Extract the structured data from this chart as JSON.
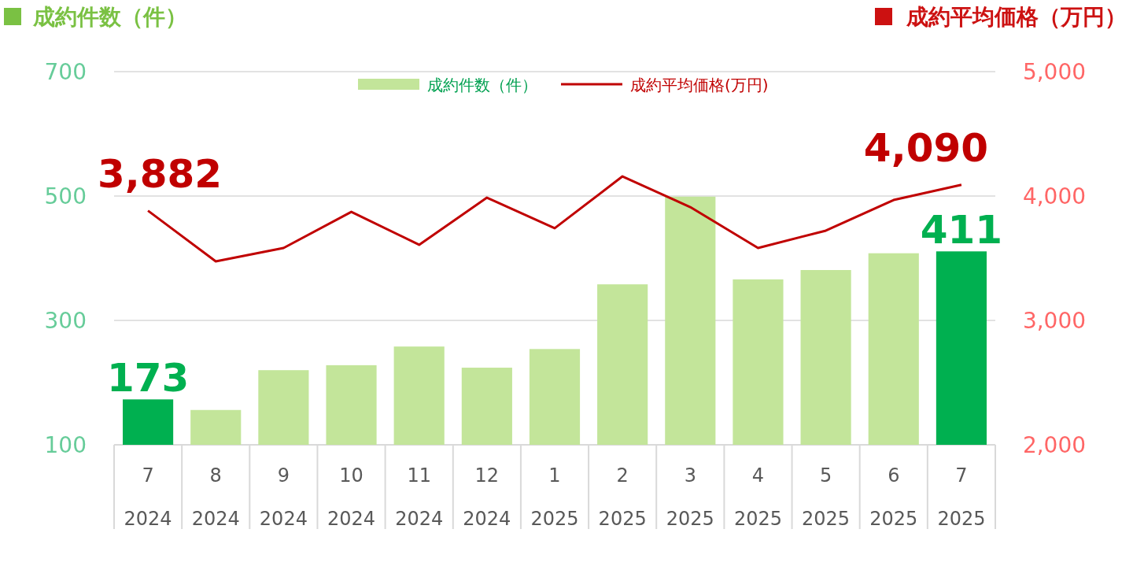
{
  "chart_data": {
    "type": "bar",
    "ylabel": "成約件数（件）",
    "y2label": "成約平均価格（万円）",
    "categories": [
      "7\n2024",
      "8\n2024",
      "9\n2024",
      "10\n2024",
      "11\n2024",
      "12\n2024",
      "1\n2025",
      "2\n2025",
      "3\n2025",
      "4\n2025",
      "5\n2025",
      "6\n2025",
      "7\n2025"
    ],
    "series": [
      {
        "name": "成約件数（件）",
        "color": "#c3e59a",
        "colors": [
          "#00b050",
          "#c3e59a",
          "#c3e59a",
          "#c3e59a",
          "#c3e59a",
          "#c3e59a",
          "#c3e59a",
          "#c3e59a",
          "#c3e59a",
          "#c3e59a",
          "#c3e59a",
          "#c3e59a",
          "#00b050"
        ],
        "values": [
          173,
          156,
          220,
          228,
          258,
          224,
          254,
          358,
          499,
          366,
          381,
          408,
          411
        ],
        "value_labels": [
          "173",
          null,
          null,
          null,
          null,
          null,
          null,
          null,
          null,
          null,
          null,
          null,
          "411"
        ]
      },
      {
        "name": "成約平均価格(万円)",
        "type": "line",
        "axis": "y2",
        "color": "#c00000",
        "values": [
          3882,
          3475,
          3582,
          3873,
          3608,
          3987,
          3741,
          4158,
          3911,
          3582,
          3722,
          3968,
          4090
        ],
        "value_labels": [
          "3,882",
          null,
          null,
          null,
          null,
          null,
          null,
          null,
          null,
          null,
          null,
          null,
          "4,090"
        ]
      }
    ],
    "ylim": [
      100,
      700
    ],
    "yticks": [
      100,
      300,
      500,
      700
    ],
    "y2lim": [
      2000,
      5000
    ],
    "y2ticks": [
      {
        "value": 2000,
        "label": "2,000"
      },
      {
        "value": 3000,
        "label": "3,000"
      },
      {
        "value": 4000,
        "label": "4,000"
      },
      {
        "value": 5000,
        "label": "5,000"
      }
    ],
    "grid": "y",
    "legend": "top",
    "marker": "none",
    "line_style": "solid"
  }
}
